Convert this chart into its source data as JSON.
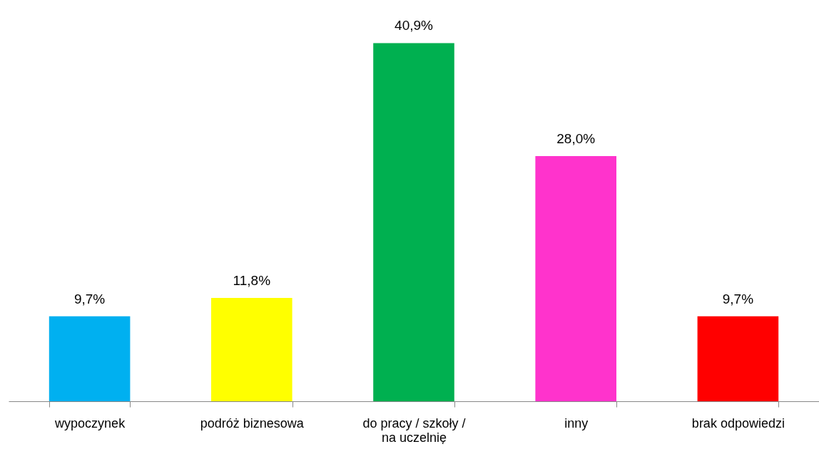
{
  "chart_data": {
    "type": "bar",
    "categories": [
      "wypoczynek",
      "podróż biznesowa",
      "do pracy / szkoły / na uczelnię",
      "inny",
      "brak odpowiedzi"
    ],
    "values": [
      9.7,
      11.8,
      40.9,
      28.0,
      9.7
    ],
    "colors": [
      "#00b0f0",
      "#ffff00",
      "#00b050",
      "#ff33cc",
      "#ff0000"
    ],
    "value_labels": [
      "9,7%",
      "11,8%",
      "40,9%",
      "28,0%",
      "9,7%"
    ],
    "grid": false
  }
}
